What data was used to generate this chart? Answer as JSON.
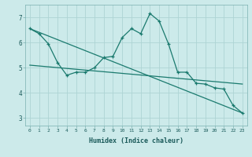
{
  "xlabel": "Humidex (Indice chaleur)",
  "ylabel": "",
  "bg_color": "#cceaea",
  "line_color": "#1a7a6e",
  "grid_color": "#aed4d4",
  "xlim": [
    -0.5,
    23.5
  ],
  "ylim": [
    2.7,
    7.5
  ],
  "xticks": [
    0,
    1,
    2,
    3,
    4,
    5,
    6,
    7,
    8,
    9,
    10,
    11,
    12,
    13,
    14,
    15,
    16,
    17,
    18,
    19,
    20,
    21,
    22,
    23
  ],
  "yticks": [
    3,
    4,
    5,
    6,
    7
  ],
  "line1_x": [
    0,
    1,
    2,
    3,
    4,
    5,
    6,
    7,
    8,
    9,
    10,
    11,
    12,
    13,
    14,
    15,
    16,
    17,
    18,
    19,
    20,
    21,
    22,
    23
  ],
  "line1_y": [
    6.55,
    6.35,
    5.95,
    5.2,
    4.7,
    4.82,
    4.82,
    5.0,
    5.4,
    5.45,
    6.2,
    6.55,
    6.35,
    7.15,
    6.85,
    5.95,
    4.82,
    4.82,
    4.38,
    4.35,
    4.2,
    4.15,
    3.5,
    3.2
  ],
  "line2_x": [
    0,
    23
  ],
  "line2_y": [
    6.55,
    3.2
  ],
  "line3_x": [
    0,
    23
  ],
  "line3_y": [
    5.1,
    4.35
  ],
  "marker": "+"
}
